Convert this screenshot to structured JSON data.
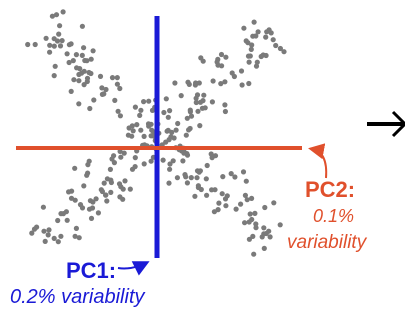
{
  "colors": {
    "point": "#7a7a7a",
    "pc1": "#1a1ad6",
    "pc2": "#e0502c",
    "arrow": "#000000"
  },
  "pc1": {
    "title": "PC1:",
    "description": "0.2% variability"
  },
  "pc2": {
    "title": "PC2:",
    "value": "0.1%",
    "description": "variability"
  },
  "arrow_icon": "right-arrow-icon",
  "point_count": 320
}
